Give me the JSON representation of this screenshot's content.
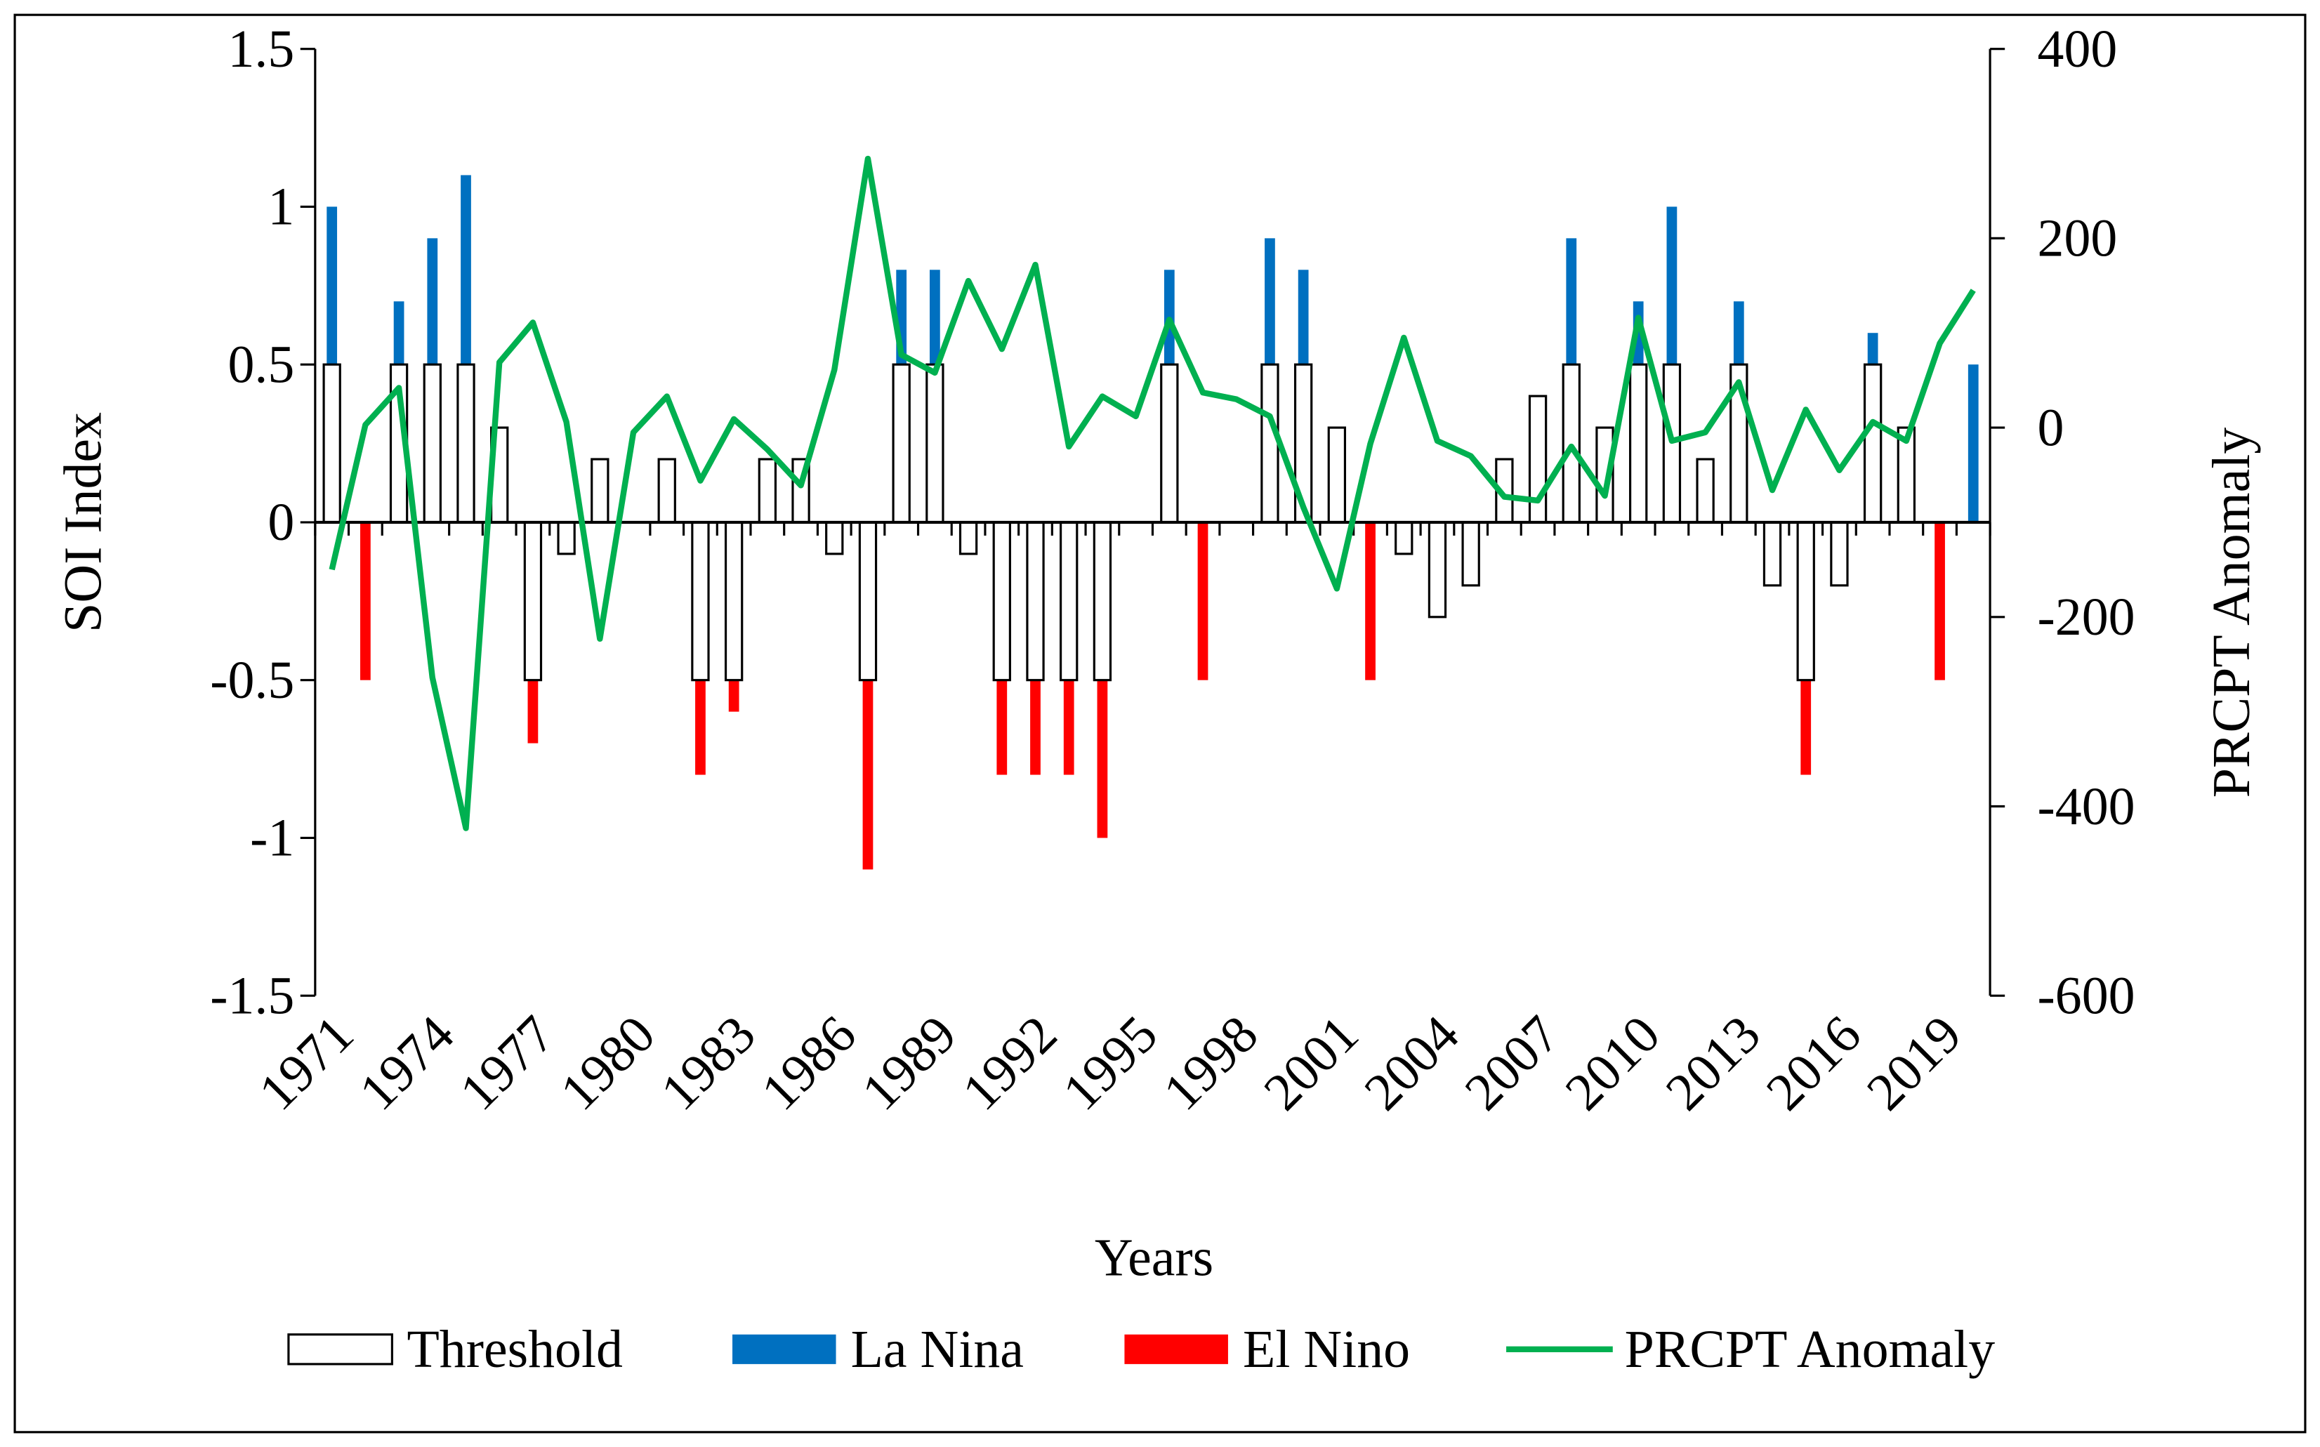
{
  "chart_data": {
    "type": "bar",
    "categories": [
      "1971",
      null,
      null,
      "1974",
      null,
      null,
      "1977",
      null,
      null,
      "1980",
      null,
      null,
      "1983",
      null,
      null,
      "1986",
      null,
      null,
      "1989",
      null,
      null,
      "1992",
      null,
      null,
      "1995",
      null,
      null,
      "1998",
      null,
      null,
      "2001",
      null,
      null,
      "2004",
      null,
      null,
      "2007",
      null,
      null,
      "2010",
      null,
      null,
      "2013",
      null,
      null,
      "2016",
      null,
      null,
      "2019",
      null
    ],
    "x_label": "Years",
    "y_label": "SOI Index",
    "y2_label": "PRCPT Anomaly",
    "ylim": [
      -1.5,
      1.5
    ],
    "yticks": [
      -1.5,
      -1,
      -0.5,
      0,
      0.5,
      1,
      1.5
    ],
    "y2lim": [
      -600,
      400
    ],
    "y2ticks": [
      -600,
      -400,
      -200,
      0,
      200,
      400
    ],
    "series": [
      {
        "name": "Threshold",
        "type": "bar",
        "color": "#ffffff",
        "edge_color": "#000000",
        "values": [
          0.5,
          null,
          0.5,
          0.5,
          0.5,
          0.3,
          -0.5,
          -0.1,
          0.2,
          null,
          0.2,
          -0.5,
          -0.5,
          0.2,
          0.2,
          -0.1,
          -0.5,
          0.5,
          0.5,
          -0.1,
          -0.5,
          -0.5,
          -0.5,
          -0.5,
          null,
          0.5,
          null,
          null,
          0.5,
          0.5,
          0.3,
          null,
          -0.1,
          -0.3,
          -0.2,
          0.2,
          0.4,
          0.5,
          0.3,
          0.5,
          0.5,
          0.2,
          0.5,
          -0.2,
          -0.5,
          -0.2,
          0.5,
          0.3,
          null,
          null
        ]
      },
      {
        "name": "La Nina",
        "type": "bar",
        "color": "#0070c0",
        "values": [
          1.0,
          null,
          0.7,
          0.9,
          1.1,
          null,
          null,
          null,
          null,
          null,
          null,
          null,
          null,
          null,
          null,
          null,
          null,
          0.8,
          0.8,
          null,
          null,
          null,
          null,
          null,
          null,
          0.8,
          null,
          null,
          0.9,
          0.8,
          null,
          null,
          null,
          null,
          null,
          null,
          null,
          0.9,
          null,
          0.7,
          1.0,
          null,
          0.7,
          null,
          null,
          null,
          0.6,
          null,
          null,
          0.5
        ]
      },
      {
        "name": "El Nino",
        "type": "bar",
        "color": "#ff0000",
        "values": [
          null,
          -0.5,
          null,
          null,
          null,
          null,
          -0.7,
          null,
          null,
          null,
          null,
          -0.8,
          -0.6,
          null,
          null,
          null,
          -1.1,
          null,
          null,
          null,
          -0.8,
          -0.8,
          -0.8,
          -1.0,
          null,
          null,
          -0.5,
          null,
          null,
          null,
          null,
          -0.5,
          null,
          null,
          null,
          null,
          null,
          null,
          null,
          null,
          null,
          null,
          null,
          null,
          -0.8,
          null,
          null,
          null,
          -0.5,
          null
        ]
      },
      {
        "name": "PRCPT Anomaly",
        "type": "line",
        "axis": "y2",
        "color": "#00b050",
        "values": [
          -150,
          3,
          42,
          -264,
          -423,
          69,
          111,
          6,
          -223,
          -5,
          33,
          -56,
          9,
          -23,
          -61,
          61,
          284,
          77,
          58,
          155,
          83,
          172,
          -20,
          33,
          12,
          114,
          37,
          30,
          12,
          -84,
          -170,
          -17,
          95,
          -14,
          -30,
          -73,
          -77,
          -20,
          -72,
          116,
          -14,
          -5,
          48,
          -66,
          19,
          -45,
          6,
          -14,
          89,
          145
        ]
      }
    ]
  }
}
